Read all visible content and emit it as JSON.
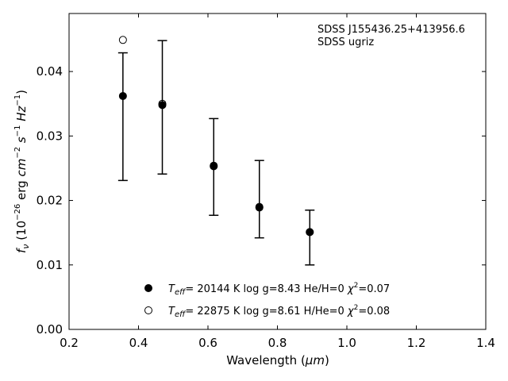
{
  "chart_data": {
    "type": "scatter",
    "xlabel_prefix": "Wavelength (",
    "xlabel_unit": "μm",
    "xlabel_suffix": ")",
    "ylabel": "f_ν (10^−26 erg cm^−2 s^−1 Hz^−1)",
    "xlim": [
      0.2,
      1.4
    ],
    "ylim": [
      0.0,
      0.049
    ],
    "xticks": [
      "0.2",
      "0.4",
      "0.6",
      "0.8",
      "1.0",
      "1.2",
      "1.4"
    ],
    "xtick_values": [
      0.2,
      0.4,
      0.6,
      0.8,
      1.0,
      1.2,
      1.4
    ],
    "yticks": [
      "0.00",
      "0.01",
      "0.02",
      "0.03",
      "0.04"
    ],
    "ytick_values": [
      0.0,
      0.01,
      0.02,
      0.03,
      0.04
    ],
    "grid": false,
    "legend_position": "lower-center",
    "annotations": [
      "SDSS J155436.25+413956.6",
      "SDSS ugriz"
    ],
    "observed": {
      "x": [
        0.3551,
        0.4686,
        0.6166,
        0.748,
        0.8932
      ],
      "y": [
        0.0361,
        0.0346,
        0.0252,
        0.0188,
        0.015
      ],
      "y_low": [
        0.0231,
        0.0241,
        0.0177,
        0.0142,
        0.01
      ],
      "y_high": [
        0.0429,
        0.0448,
        0.0327,
        0.0262,
        0.0185
      ]
    },
    "series": [
      {
        "name": "T_eff= 20144 K  log g=8.43  He/H=0  χ²=0.07",
        "marker": "filled-circle",
        "x": [
          0.3551,
          0.4686,
          0.6166,
          0.748,
          0.8932
        ],
        "y": [
          0.0362,
          0.0348,
          0.0253,
          0.0189,
          0.0151
        ]
      },
      {
        "name": "T_eff= 22875 K  log g=8.61  H/He=0  χ²=0.08",
        "marker": "open-circle",
        "x": [
          0.3551,
          0.4686,
          0.6166,
          0.748,
          0.8932
        ],
        "y": [
          0.0449,
          0.035,
          0.0254,
          0.019,
          0.0151
        ]
      }
    ],
    "legend": [
      {
        "teff_label": "T",
        "teff_sub": "eff",
        "text_a": "= 20144 K  log g=8.43  He/H=0  ",
        "chi": "χ",
        "chi_sup": "2",
        "text_b": "=0.07"
      },
      {
        "teff_label": "T",
        "teff_sub": "eff",
        "text_a": "= 22875 K  log g=8.61  H/He=0  ",
        "chi": "χ",
        "chi_sup": "2",
        "text_b": "=0.08"
      }
    ]
  },
  "colors": {
    "marker": "#000000",
    "axis": "#000000",
    "background": "#ffffff"
  }
}
